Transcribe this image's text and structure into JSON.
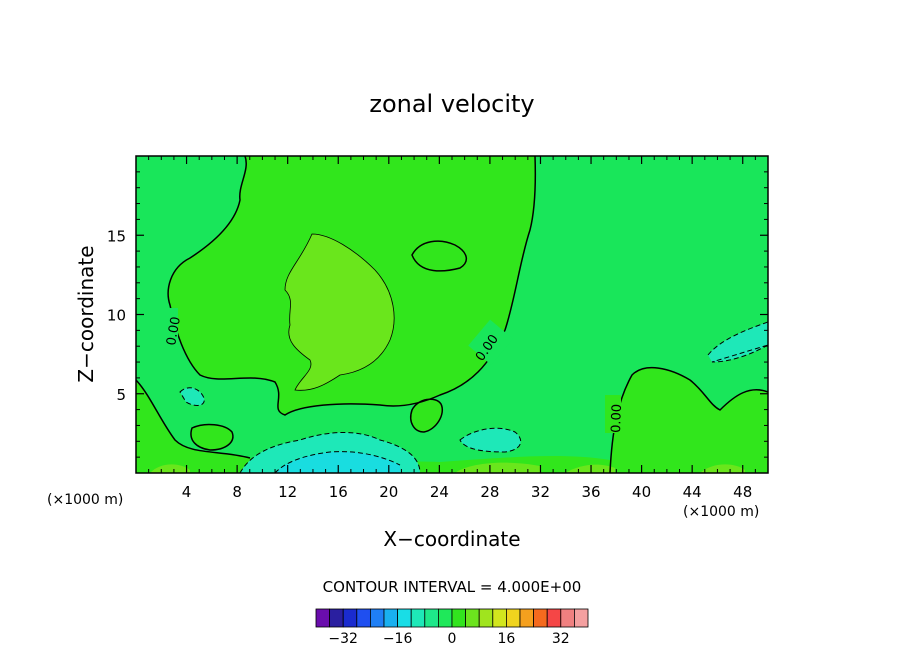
{
  "chart_data": {
    "type": "contour",
    "title": "zonal velocity",
    "xlabel": "X−coordinate",
    "ylabel": "Z−coordinate",
    "xlim": [
      0,
      50
    ],
    "ylim": [
      0,
      20
    ],
    "x_ticks": [
      4,
      8,
      12,
      16,
      20,
      24,
      28,
      32,
      36,
      40,
      44,
      48
    ],
    "y_ticks": [
      5,
      10,
      15
    ],
    "x_unit": "(×1000 m)",
    "x_unit_right": "(×1000 m)",
    "contour_interval_text": "CONTOUR INTERVAL = 4.000E+00",
    "contour_labels": [
      "0.00",
      "0.00",
      "0.00"
    ],
    "colorbar": {
      "levels": [
        -36,
        -32,
        -28,
        -24,
        -20,
        -16,
        -12,
        -8,
        -4,
        0,
        4,
        8,
        12,
        16,
        20,
        24,
        28,
        32,
        36
      ],
      "tick_labels": [
        "−32",
        "−16",
        "0",
        "16",
        "32"
      ],
      "tick_values": [
        -32,
        -16,
        0,
        16,
        32
      ],
      "colors": [
        "#6a0dad",
        "#2a1fa0",
        "#1a2bcf",
        "#1f4ff0",
        "#1f7ff5",
        "#19b0f0",
        "#19dde6",
        "#1ee8b8",
        "#1ee88a",
        "#1fe85a",
        "#32e41e",
        "#6ce41e",
        "#a0e41e",
        "#d2e61e",
        "#f0d41e",
        "#f5a01e",
        "#f56a1e",
        "#f54646",
        "#f08080",
        "#f4a0a0"
      ]
    },
    "field_colors": {
      "background": "#19e65a",
      "positive_4": "#31e61c",
      "positive_8": "#6ae61c",
      "negative_4": "#1ee8b8",
      "negative_8": "#19dde0"
    }
  }
}
